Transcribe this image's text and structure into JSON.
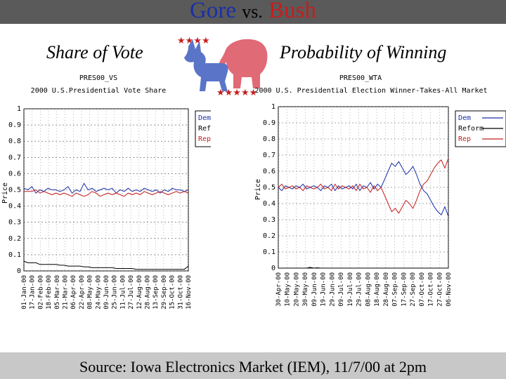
{
  "header": {
    "title_gore": "Gore",
    "title_vs": "vs.",
    "title_bush": "Bush"
  },
  "left_panel": {
    "subtitle": "Share of Vote"
  },
  "right_panel": {
    "subtitle": "Probability of Winning"
  },
  "footer": {
    "source": "Source: Iowa Electronics Market (IEM), 11/7/00 at 2pm"
  },
  "colors": {
    "dem": "#1a2fa8",
    "rep": "#c41e1e",
    "reform": "#000000",
    "title_bar": "#5a5a5a",
    "footer_bar": "#c8c8c8"
  },
  "logo": {
    "icon": "donkey-elephant-logo"
  },
  "chart_data": [
    {
      "type": "line",
      "code": "PRES00_VS",
      "title": "2000 U.S.Presidential Vote Share",
      "ylabel": "Price",
      "ylim": [
        0,
        1
      ],
      "yticks": [
        "0",
        "0.1",
        "0.2",
        "0.3",
        "0.4",
        "0.5",
        "0.6",
        "0.7",
        "0.8",
        "0.9",
        "1"
      ],
      "xticks": [
        "01-Jan-00",
        "17-Jan-00",
        "02-Feb-00",
        "18-Feb-00",
        "05-Mar-00",
        "21-Mar-00",
        "06-Apr-00",
        "22-Apr-00",
        "08-May-00",
        "24-May-00",
        "09-Jun-00",
        "25-Jun-00",
        "11-Jul-00",
        "27-Jul-00",
        "12-Aug-00",
        "28-Aug-00",
        "13-Sep-00",
        "29-Sep-00",
        "15-Oct-00",
        "31-Oct-00",
        "16-Nov-00"
      ],
      "legend": [
        "DemVS",
        "ReformVS",
        "RepVS"
      ],
      "series": [
        {
          "name": "DemVS",
          "values": [
            0.51,
            0.5,
            0.52,
            0.48,
            0.5,
            0.49,
            0.51,
            0.5,
            0.5,
            0.49,
            0.5,
            0.52,
            0.48,
            0.5,
            0.49,
            0.54,
            0.5,
            0.51,
            0.49,
            0.5,
            0.51,
            0.5,
            0.51,
            0.48,
            0.5,
            0.49,
            0.51,
            0.49,
            0.5,
            0.49,
            0.51,
            0.5,
            0.49,
            0.5,
            0.48,
            0.5,
            0.49,
            0.51,
            0.5,
            0.5,
            0.49,
            0.5
          ]
        },
        {
          "name": "ReformVS",
          "values": [
            0.06,
            0.05,
            0.05,
            0.05,
            0.04,
            0.04,
            0.04,
            0.04,
            0.04,
            0.035,
            0.035,
            0.03,
            0.03,
            0.03,
            0.03,
            0.025,
            0.025,
            0.02,
            0.02,
            0.02,
            0.02,
            0.02,
            0.02,
            0.015,
            0.015,
            0.015,
            0.015,
            0.015,
            0.01,
            0.01,
            0.01,
            0.01,
            0.01,
            0.01,
            0.01,
            0.01,
            0.01,
            0.01,
            0.01,
            0.01,
            0.01,
            0.03
          ]
        },
        {
          "name": "RepVS",
          "values": [
            0.49,
            0.49,
            0.49,
            0.5,
            0.48,
            0.49,
            0.48,
            0.47,
            0.48,
            0.47,
            0.48,
            0.47,
            0.46,
            0.48,
            0.47,
            0.46,
            0.47,
            0.49,
            0.48,
            0.46,
            0.47,
            0.48,
            0.47,
            0.48,
            0.47,
            0.46,
            0.48,
            0.47,
            0.48,
            0.47,
            0.49,
            0.48,
            0.47,
            0.48,
            0.49,
            0.48,
            0.47,
            0.48,
            0.49,
            0.48,
            0.49,
            0.48
          ]
        }
      ]
    },
    {
      "type": "line",
      "code": "PRES00_WTA",
      "title": "2000 U.S. Presidential Election Winner-Takes-All Market",
      "ylabel": "Price",
      "ylim": [
        0,
        1
      ],
      "yticks": [
        "0",
        "0.1",
        "0.2",
        "0.3",
        "0.4",
        "0.5",
        "0.6",
        "0.7",
        "0.8",
        "0.9",
        "1"
      ],
      "xticks": [
        "30-Apr-00",
        "10-May-00",
        "20-May-00",
        "30-May-00",
        "09-Jun-00",
        "19-Jun-00",
        "29-Jun-00",
        "09-Jul-00",
        "19-Jul-00",
        "29-Jul-00",
        "08-Aug-00",
        "18-Aug-00",
        "28-Aug-00",
        "07-Sep-00",
        "17-Sep-00",
        "27-Sep-00",
        "07-Oct-00",
        "17-Oct-00",
        "27-Oct-00",
        "06-Nov-00"
      ],
      "legend": [
        "Dem",
        "Reform",
        "Rep"
      ],
      "series": [
        {
          "name": "Dem",
          "values": [
            0.5,
            0.48,
            0.51,
            0.5,
            0.49,
            0.51,
            0.5,
            0.52,
            0.49,
            0.5,
            0.51,
            0.5,
            0.48,
            0.51,
            0.5,
            0.52,
            0.48,
            0.51,
            0.49,
            0.5,
            0.51,
            0.49,
            0.52,
            0.48,
            0.51,
            0.5,
            0.53,
            0.49,
            0.52,
            0.5,
            0.55,
            0.6,
            0.65,
            0.63,
            0.66,
            0.62,
            0.58,
            0.6,
            0.63,
            0.58,
            0.52,
            0.48,
            0.46,
            0.42,
            0.38,
            0.35,
            0.33,
            0.38,
            0.32
          ]
        },
        {
          "name": "Reform",
          "values": [
            0,
            0,
            0,
            0,
            0,
            0,
            0,
            0,
            0,
            0.005,
            0,
            0.002,
            0,
            0,
            0,
            0,
            0,
            0,
            0,
            0,
            0,
            0,
            0,
            0,
            0,
            0,
            0,
            0,
            0,
            0,
            0,
            0,
            0,
            0,
            0,
            0,
            0,
            0,
            0,
            0,
            0,
            0,
            0,
            0,
            0,
            0,
            0,
            0,
            0
          ]
        },
        {
          "name": "Rep",
          "values": [
            0.5,
            0.52,
            0.49,
            0.5,
            0.51,
            0.49,
            0.5,
            0.48,
            0.51,
            0.5,
            0.49,
            0.5,
            0.52,
            0.49,
            0.5,
            0.48,
            0.52,
            0.49,
            0.51,
            0.5,
            0.49,
            0.51,
            0.48,
            0.52,
            0.49,
            0.5,
            0.47,
            0.51,
            0.48,
            0.5,
            0.45,
            0.4,
            0.35,
            0.37,
            0.34,
            0.38,
            0.42,
            0.4,
            0.37,
            0.42,
            0.48,
            0.52,
            0.54,
            0.58,
            0.62,
            0.65,
            0.67,
            0.62,
            0.68
          ]
        }
      ]
    }
  ]
}
